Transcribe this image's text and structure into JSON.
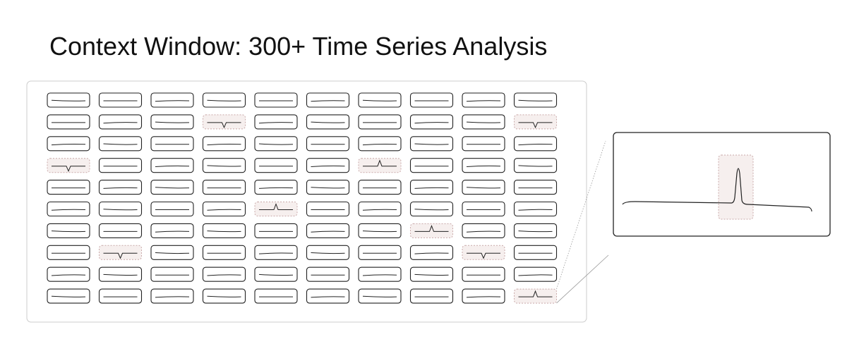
{
  "title": "Context Window: 300+ Time Series Analysis",
  "grid": {
    "rows": 10,
    "cols": 10,
    "anomalies": [
      {
        "row": 1,
        "col": 3,
        "type": "dip"
      },
      {
        "row": 1,
        "col": 9,
        "type": "dip"
      },
      {
        "row": 3,
        "col": 0,
        "type": "dip"
      },
      {
        "row": 3,
        "col": 6,
        "type": "spike"
      },
      {
        "row": 5,
        "col": 4,
        "type": "spike"
      },
      {
        "row": 6,
        "col": 7,
        "type": "spike"
      },
      {
        "row": 7,
        "col": 1,
        "type": "dip"
      },
      {
        "row": 7,
        "col": 8,
        "type": "dip"
      },
      {
        "row": 9,
        "col": 9,
        "type": "spike"
      }
    ]
  },
  "zoom": {
    "source": {
      "row": 9,
      "col": 9
    },
    "series_type": "spike"
  },
  "colors": {
    "stroke": "#222222",
    "frame": "#cccccc",
    "highlight_fill": "#f6efee",
    "highlight_stroke": "#c9a9a9",
    "connector": "#9a9a9a"
  }
}
